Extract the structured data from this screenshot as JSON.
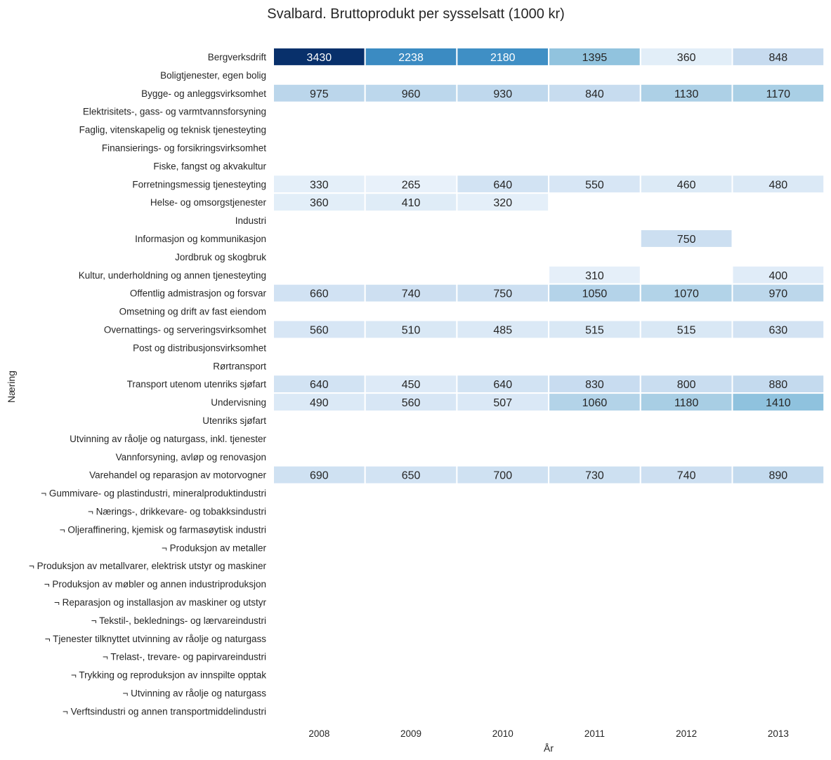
{
  "chart_data": {
    "type": "heatmap",
    "title": "Svalbard. Bruttoprodukt per sysselsatt (1000 kr)",
    "xlabel": "År",
    "ylabel": "Næring",
    "colormap": "Blues",
    "value_range": [
      0,
      3430
    ],
    "grid": false,
    "columns": [
      "2008",
      "2009",
      "2010",
      "2011",
      "2012",
      "2013"
    ],
    "rows": [
      {
        "label": "Bergverksdrift",
        "values": [
          3430,
          2238,
          2180,
          1395,
          360,
          848
        ]
      },
      {
        "label": "Boligtjenester, egen bolig",
        "values": [
          null,
          null,
          null,
          null,
          null,
          null
        ]
      },
      {
        "label": "Bygge- og anleggsvirksomhet",
        "values": [
          975,
          960,
          930,
          840,
          1130,
          1170
        ]
      },
      {
        "label": "Elektrisitets-, gass- og varmtvannsforsyning",
        "values": [
          null,
          null,
          null,
          null,
          null,
          null
        ]
      },
      {
        "label": "Faglig, vitenskapelig og teknisk tjenesteyting",
        "values": [
          null,
          null,
          null,
          null,
          null,
          null
        ]
      },
      {
        "label": "Finansierings- og forsikringsvirksomhet",
        "values": [
          null,
          null,
          null,
          null,
          null,
          null
        ]
      },
      {
        "label": "Fiske, fangst og akvakultur",
        "values": [
          null,
          null,
          null,
          null,
          null,
          null
        ]
      },
      {
        "label": "Forretningsmessig tjenesteyting",
        "values": [
          330,
          265,
          640,
          550,
          460,
          480
        ]
      },
      {
        "label": "Helse- og omsorgstjenester",
        "values": [
          360,
          410,
          320,
          null,
          null,
          null
        ]
      },
      {
        "label": "Industri",
        "values": [
          null,
          null,
          null,
          null,
          null,
          null
        ]
      },
      {
        "label": "Informasjon og kommunikasjon",
        "values": [
          null,
          null,
          null,
          null,
          750,
          null
        ]
      },
      {
        "label": "Jordbruk og skogbruk",
        "values": [
          null,
          null,
          null,
          null,
          null,
          null
        ]
      },
      {
        "label": "Kultur, underholdning og annen tjenesteyting",
        "values": [
          null,
          null,
          null,
          310,
          null,
          400
        ]
      },
      {
        "label": "Offentlig admistrasjon og forsvar",
        "values": [
          660,
          740,
          750,
          1050,
          1070,
          970
        ]
      },
      {
        "label": "Omsetning og drift av fast eiendom",
        "values": [
          null,
          null,
          null,
          null,
          null,
          null
        ]
      },
      {
        "label": "Overnattings- og serveringsvirksomhet",
        "values": [
          560,
          510,
          485,
          515,
          515,
          630
        ]
      },
      {
        "label": "Post og distribusjonsvirksomhet",
        "values": [
          null,
          null,
          null,
          null,
          null,
          null
        ]
      },
      {
        "label": "Rørtransport",
        "values": [
          null,
          null,
          null,
          null,
          null,
          null
        ]
      },
      {
        "label": "Transport utenom utenriks sjøfart",
        "values": [
          640,
          450,
          640,
          830,
          800,
          880
        ]
      },
      {
        "label": "Undervisning",
        "values": [
          490,
          560,
          507,
          1060,
          1180,
          1410
        ]
      },
      {
        "label": "Utenriks sjøfart",
        "values": [
          null,
          null,
          null,
          null,
          null,
          null
        ]
      },
      {
        "label": "Utvinning av råolje og naturgass, inkl. tjenester",
        "values": [
          null,
          null,
          null,
          null,
          null,
          null
        ]
      },
      {
        "label": "Vannforsyning, avløp og renovasjon",
        "values": [
          null,
          null,
          null,
          null,
          null,
          null
        ]
      },
      {
        "label": "Varehandel og reparasjon av motorvogner",
        "values": [
          690,
          650,
          700,
          730,
          740,
          890
        ]
      },
      {
        "label": "¬ Gummivare- og plastindustri, mineralproduktindustri",
        "values": [
          null,
          null,
          null,
          null,
          null,
          null
        ]
      },
      {
        "label": "¬ Nærings-, drikkevare- og tobakksindustri",
        "values": [
          null,
          null,
          null,
          null,
          null,
          null
        ]
      },
      {
        "label": "¬ Oljeraffinering, kjemisk og farmasøytisk industri",
        "values": [
          null,
          null,
          null,
          null,
          null,
          null
        ]
      },
      {
        "label": "¬ Produksjon av metaller",
        "values": [
          null,
          null,
          null,
          null,
          null,
          null
        ]
      },
      {
        "label": "¬ Produksjon av metallvarer, elektrisk utstyr og maskiner",
        "values": [
          null,
          null,
          null,
          null,
          null,
          null
        ]
      },
      {
        "label": "¬ Produksjon av møbler og annen industriproduksjon",
        "values": [
          null,
          null,
          null,
          null,
          null,
          null
        ]
      },
      {
        "label": "¬ Reparasjon og installasjon av maskiner og utstyr",
        "values": [
          null,
          null,
          null,
          null,
          null,
          null
        ]
      },
      {
        "label": "¬ Tekstil-, beklednings- og lærvareindustri",
        "values": [
          null,
          null,
          null,
          null,
          null,
          null
        ]
      },
      {
        "label": "¬ Tjenester tilknyttet utvinning av råolje og naturgass",
        "values": [
          null,
          null,
          null,
          null,
          null,
          null
        ]
      },
      {
        "label": "¬ Trelast-, trevare- og papirvareindustri",
        "values": [
          null,
          null,
          null,
          null,
          null,
          null
        ]
      },
      {
        "label": "¬ Trykking og reproduksjon av innspilte opptak",
        "values": [
          null,
          null,
          null,
          null,
          null,
          null
        ]
      },
      {
        "label": "¬ Utvinning av råolje og naturgass",
        "values": [
          null,
          null,
          null,
          null,
          null,
          null
        ]
      },
      {
        "label": "¬ Verftsindustri og annen transportmiddelindustri",
        "values": [
          null,
          null,
          null,
          null,
          null,
          null
        ]
      }
    ]
  }
}
